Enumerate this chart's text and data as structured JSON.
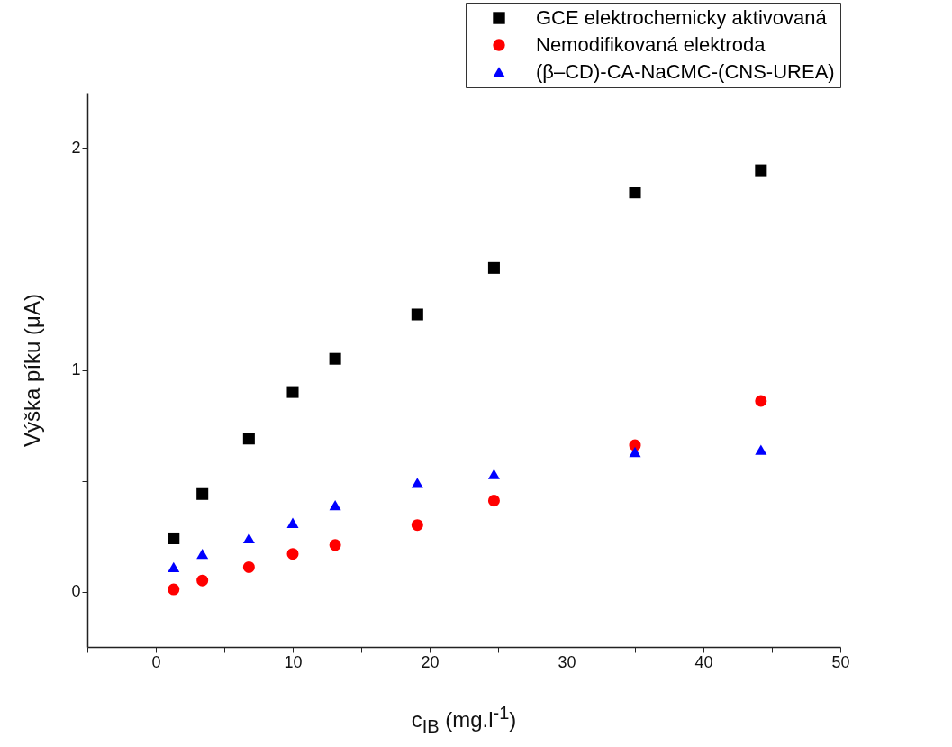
{
  "chart_data": {
    "type": "scatter",
    "xlabel": "c$_{IB}$ (mg.l$^{-1}$)",
    "ylabel": "Výška píku (μA)",
    "xlim": [
      -5,
      50
    ],
    "ylim": [
      -0.25,
      2.25
    ],
    "xticks": [
      {
        "value": -5,
        "label": null
      },
      0,
      {
        "value": 5,
        "label": null
      },
      10,
      {
        "value": 15,
        "label": null
      },
      20,
      {
        "value": 25,
        "label": null
      },
      30,
      {
        "value": 35,
        "label": null
      },
      40,
      {
        "value": 45,
        "label": null
      },
      50
    ],
    "yticks": [
      0,
      {
        "value": 0.5,
        "label": null
      },
      1,
      {
        "value": 1.5,
        "label": null
      },
      2
    ],
    "x": [
      1.3,
      3.4,
      6.8,
      10.0,
      13.1,
      19.1,
      24.7,
      35.0,
      44.2
    ],
    "legend": "top right",
    "series": [
      {
        "name": "GCE elektrochemicky aktivovaná",
        "color": "#000000",
        "marker": "square",
        "values": [
          0.24,
          0.44,
          0.69,
          0.9,
          1.05,
          1.25,
          1.46,
          1.8,
          1.9
        ]
      },
      {
        "name": "Nemodifikovaná elektroda",
        "color": "#ff0000",
        "marker": "circle",
        "values": [
          0.01,
          0.05,
          0.11,
          0.17,
          0.21,
          0.3,
          0.41,
          0.66,
          0.86
        ]
      },
      {
        "name": "(β–CD)-CA-NaCMC-(CNS-UREA)",
        "color": "#0000ff",
        "marker": "triangle",
        "values": [
          0.11,
          0.17,
          0.24,
          0.31,
          0.39,
          0.49,
          0.53,
          0.63,
          0.64
        ]
      }
    ]
  }
}
